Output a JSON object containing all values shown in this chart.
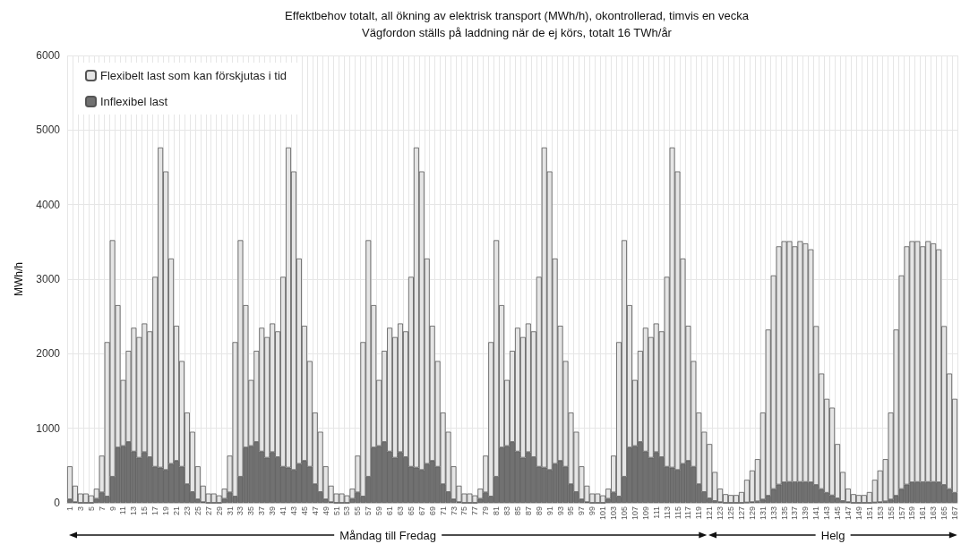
{
  "chart_data": {
    "type": "bar",
    "title": "Effektbehov totalt, all ökning av elektrisk transport (MWh/h), okontrollerad, timvis en vecka",
    "subtitle": "Vägfordon ställs på laddning när de ej körs, totalt 16 TWh/år",
    "ylabel": "MWh/h",
    "categories": [
      "1",
      null,
      "3",
      null,
      "5",
      null,
      "7",
      null,
      "9",
      null,
      "11",
      null,
      "13",
      null,
      "15",
      null,
      "17",
      null,
      "19",
      null,
      "21",
      null,
      "23",
      null,
      "25",
      null,
      "27",
      null,
      "29",
      null,
      "31",
      null,
      "33",
      null,
      "35",
      null,
      "37",
      null,
      "39",
      null,
      "41",
      null,
      "43",
      null,
      "45",
      null,
      "47",
      null,
      "49",
      null,
      "51",
      null,
      "53",
      null,
      "55",
      null,
      "57",
      null,
      "59",
      null,
      "61",
      null,
      "63",
      null,
      "65",
      null,
      "67",
      null,
      "69",
      null,
      "71",
      null,
      "73",
      null,
      "75",
      null,
      "77",
      null,
      "79",
      null,
      "81",
      null,
      "83",
      null,
      "85",
      null,
      "87",
      null,
      "89",
      null,
      "91",
      null,
      "93",
      null,
      "95",
      null,
      "97",
      null,
      "99",
      null,
      "101",
      null,
      "103",
      null,
      "105",
      null,
      "107",
      null,
      "109",
      null,
      "111",
      null,
      "113",
      null,
      "115",
      null,
      "117",
      null,
      "119",
      null,
      "121",
      null,
      "123",
      null,
      "125",
      null,
      "127",
      null,
      "129",
      null,
      "131",
      null,
      "133",
      null,
      "135",
      null,
      "137",
      null,
      "139",
      null,
      "141",
      null,
      "143",
      null,
      "145",
      null,
      "147",
      null,
      "149",
      null,
      "151",
      null,
      "153",
      null,
      "155",
      null,
      "157",
      null,
      "159",
      null,
      "161",
      null,
      "163",
      null,
      "165",
      null,
      "167"
    ],
    "stacked": true,
    "series": [
      {
        "name": "Inflexibel last",
        "color": "#717171",
        "values": [
          47,
          10,
          0,
          0,
          0,
          55,
          140,
          85,
          350,
          742,
          762,
          816,
          688,
          605,
          680,
          613,
          484,
          473,
          441,
          523,
          563,
          484,
          250,
          145,
          47,
          10,
          0,
          0,
          0,
          55,
          140,
          85,
          350,
          742,
          762,
          816,
          688,
          605,
          680,
          613,
          484,
          473,
          441,
          523,
          563,
          484,
          250,
          145,
          47,
          10,
          0,
          0,
          0,
          55,
          140,
          85,
          350,
          742,
          762,
          816,
          688,
          605,
          680,
          613,
          484,
          473,
          441,
          523,
          563,
          484,
          250,
          145,
          47,
          10,
          0,
          0,
          0,
          55,
          140,
          85,
          350,
          742,
          762,
          816,
          688,
          605,
          680,
          613,
          484,
          473,
          441,
          523,
          563,
          484,
          250,
          145,
          47,
          10,
          0,
          0,
          0,
          55,
          140,
          85,
          350,
          742,
          762,
          816,
          688,
          605,
          680,
          613,
          484,
          473,
          441,
          523,
          563,
          484,
          250,
          145,
          60,
          25,
          10,
          0,
          0,
          0,
          0,
          5,
          10,
          20,
          45,
          95,
          185,
          245,
          275,
          280,
          278,
          280,
          280,
          275,
          240,
          185,
          135,
          100,
          60,
          25,
          10,
          0,
          0,
          0,
          0,
          5,
          10,
          20,
          45,
          95,
          185,
          245,
          275,
          280,
          278,
          280,
          280,
          275,
          240,
          185,
          135
        ]
      },
      {
        "name": "Flexibelt last som kan förskjutas i tid",
        "color": "#e5e5e5",
        "values": [
          443,
          220,
          125,
          125,
          100,
          135,
          493,
          2071,
          3173,
          1910,
          886,
          1223,
          1660,
          1618,
          1726,
          1687,
          2547,
          4293,
          4004,
          2754,
          1812,
          1418,
          961,
          808,
          443,
          220,
          125,
          125,
          100,
          135,
          493,
          2071,
          3173,
          1910,
          886,
          1223,
          1660,
          1618,
          1726,
          1687,
          2547,
          4293,
          4004,
          2754,
          1812,
          1418,
          961,
          808,
          443,
          220,
          125,
          125,
          100,
          135,
          493,
          2071,
          3173,
          1910,
          886,
          1223,
          1660,
          1618,
          1726,
          1687,
          2547,
          4293,
          4004,
          2754,
          1812,
          1418,
          961,
          808,
          443,
          220,
          125,
          125,
          100,
          135,
          493,
          2071,
          3173,
          1910,
          886,
          1223,
          1660,
          1618,
          1726,
          1687,
          2547,
          4293,
          4004,
          2754,
          1812,
          1418,
          961,
          808,
          443,
          220,
          125,
          125,
          100,
          135,
          493,
          2071,
          3173,
          1910,
          886,
          1223,
          1660,
          1618,
          1726,
          1687,
          2547,
          4293,
          4004,
          2754,
          1812,
          1418,
          961,
          808,
          729,
          389,
          181,
          117,
          105,
          105,
          145,
          304,
          424,
          566,
          1166,
          2229,
          2865,
          3195,
          3235,
          3230,
          3162,
          3230,
          3200,
          3125,
          2131,
          1549,
          1260,
          1177,
          729,
          389,
          181,
          117,
          105,
          105,
          145,
          304,
          424,
          566,
          1166,
          2229,
          2865,
          3195,
          3235,
          3230,
          3162,
          3230,
          3200,
          3125,
          2131,
          1549,
          1260
        ]
      }
    ],
    "ylim": [
      0,
      6000
    ],
    "yticks": [
      0,
      1000,
      2000,
      3000,
      4000,
      5000,
      6000
    ],
    "grid": true,
    "legend": "top left",
    "annotations": [
      "Måndag till Fredag",
      "Helg"
    ]
  }
}
